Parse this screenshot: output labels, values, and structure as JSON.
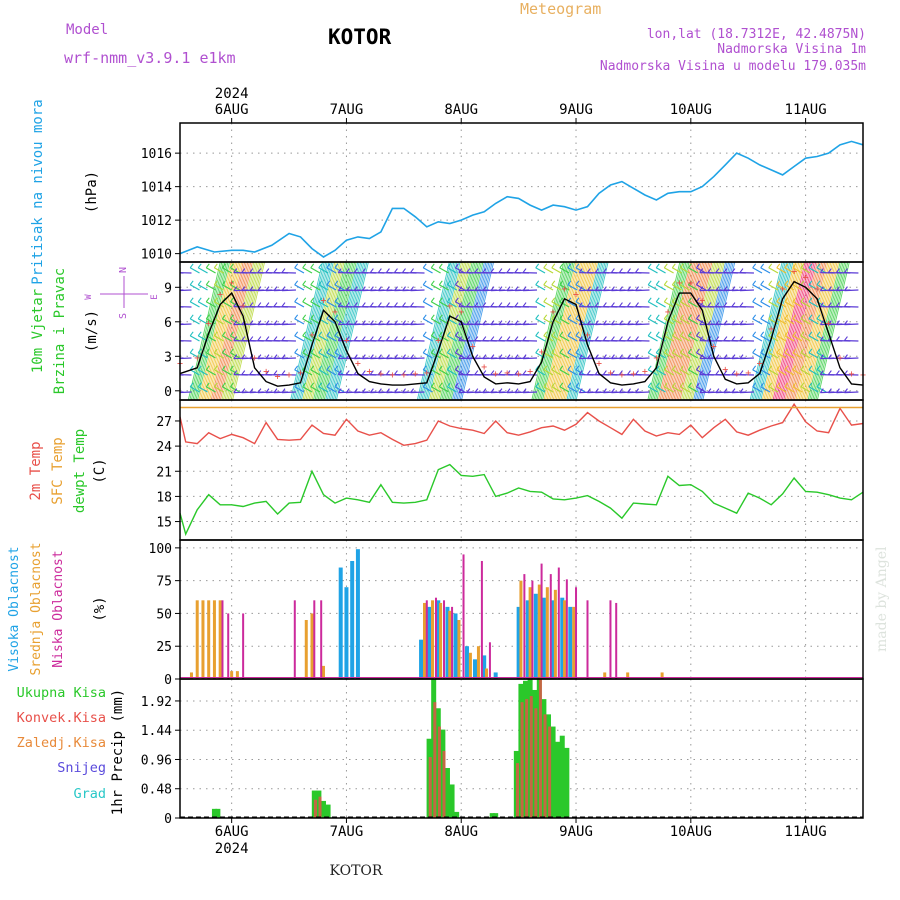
{
  "header": {
    "model_label": "Model",
    "model_name": "wrf-nmm_v3.9.1  e1km",
    "station": "KOTOR",
    "meteogram": "Meteogram",
    "lonlat": "lon,lat (18.7312E, 42.4875N)",
    "elevation": "Nadmorska Visina 1m",
    "model_elevation": "Nadmorska Visina u modelu 179.035m",
    "footer_station": "KOTOR",
    "watermark": "made by Angel"
  },
  "colors": {
    "pressure": "#1fa3e6",
    "temp2m": "#e8504a",
    "sfctemp": "#e8a030",
    "dewpt": "#2ac82a",
    "cloud_high": "#1fa3e6",
    "cloud_mid": "#e8a030",
    "cloud_low": "#cc2a9c",
    "precip_total": "#2ac82a",
    "precip_conv": "#e8504a",
    "precip_strat": "#e88a3a",
    "snow": "#5a4adc",
    "graupel": "#2ac8c8",
    "purple_text": "#b050d0",
    "title_orange": "#e8b060"
  },
  "chart_data": [
    {
      "type": "line",
      "panel": "pressure",
      "ylabel_main": "Pritisak na nivou mora",
      "ylabel_unit": "(hPa)",
      "yticks": [
        "1010",
        "1012",
        "1014",
        "1016"
      ],
      "ylim": [
        1009.5,
        1017.8
      ],
      "x_top_year": "2024",
      "x_top_dates": [
        "6AUG",
        "7AUG",
        "8AUG",
        "9AUG",
        "10AUG",
        "11AUG"
      ],
      "x_days_range": [
        5.55,
        11.5
      ],
      "x": [
        5.55,
        5.7,
        5.85,
        6.0,
        6.1,
        6.2,
        6.35,
        6.5,
        6.6,
        6.7,
        6.8,
        6.9,
        7.0,
        7.1,
        7.2,
        7.3,
        7.4,
        7.5,
        7.6,
        7.7,
        7.8,
        7.9,
        8.0,
        8.1,
        8.2,
        8.3,
        8.4,
        8.5,
        8.6,
        8.7,
        8.8,
        8.9,
        9.0,
        9.1,
        9.2,
        9.3,
        9.4,
        9.5,
        9.6,
        9.7,
        9.8,
        9.9,
        10.0,
        10.1,
        10.2,
        10.3,
        10.4,
        10.5,
        10.6,
        10.7,
        10.8,
        10.9,
        11.0,
        11.1,
        11.2,
        11.3,
        11.4,
        11.5
      ],
      "values": [
        1010.0,
        1010.4,
        1010.1,
        1010.2,
        1010.2,
        1010.1,
        1010.5,
        1011.2,
        1011.0,
        1010.3,
        1009.8,
        1010.2,
        1010.8,
        1011.0,
        1010.9,
        1011.3,
        1012.7,
        1012.7,
        1012.2,
        1011.6,
        1011.9,
        1011.8,
        1012.0,
        1012.3,
        1012.5,
        1013.0,
        1013.4,
        1013.3,
        1012.9,
        1012.6,
        1012.9,
        1012.8,
        1012.6,
        1012.8,
        1013.6,
        1014.1,
        1014.3,
        1013.9,
        1013.5,
        1013.2,
        1013.6,
        1013.7,
        1013.7,
        1014.0,
        1014.6,
        1015.3,
        1016.0,
        1015.7,
        1015.3,
        1015.0,
        1014.7,
        1015.2,
        1015.7,
        1015.8,
        1016.0,
        1016.5,
        1016.7,
        1016.5
      ]
    },
    {
      "type": "line",
      "panel": "wind",
      "ylabel_main": "10m Vjetar",
      "ylabel_sub": "Brzina i Pravac",
      "ylabel_unit": "(m/s)",
      "compass": [
        "N",
        "S",
        "W",
        "E"
      ],
      "yticks": [
        "0",
        "3",
        "6",
        "9"
      ],
      "ylim": [
        -0.8,
        11.2
      ],
      "x": [
        5.55,
        5.7,
        5.8,
        5.9,
        6.0,
        6.1,
        6.2,
        6.3,
        6.4,
        6.5,
        6.6,
        6.7,
        6.8,
        6.9,
        7.0,
        7.1,
        7.2,
        7.3,
        7.4,
        7.5,
        7.6,
        7.7,
        7.8,
        7.9,
        8.0,
        8.1,
        8.2,
        8.3,
        8.4,
        8.5,
        8.6,
        8.7,
        8.8,
        8.9,
        9.0,
        9.1,
        9.2,
        9.3,
        9.4,
        9.5,
        9.6,
        9.7,
        9.8,
        9.9,
        10.0,
        10.1,
        10.2,
        10.3,
        10.4,
        10.5,
        10.6,
        10.7,
        10.8,
        10.9,
        11.0,
        11.1,
        11.2,
        11.3,
        11.4,
        11.5
      ],
      "values": [
        1.5,
        2.0,
        5.0,
        7.5,
        8.5,
        6.5,
        2.0,
        0.8,
        0.4,
        0.5,
        0.7,
        4.0,
        7.0,
        6.0,
        3.5,
        1.5,
        0.8,
        0.6,
        0.5,
        0.5,
        0.6,
        0.7,
        3.5,
        6.5,
        6.0,
        3.0,
        1.2,
        0.6,
        0.7,
        0.6,
        0.8,
        2.5,
        6.0,
        8.0,
        7.5,
        4.0,
        1.5,
        0.7,
        0.5,
        0.6,
        0.8,
        2.0,
        6.0,
        8.5,
        8.5,
        7.0,
        3.0,
        1.0,
        0.6,
        0.7,
        1.5,
        4.5,
        8.0,
        9.5,
        9.0,
        8.0,
        5.0,
        2.0,
        0.6,
        0.5
      ]
    },
    {
      "type": "line",
      "panel": "temperature",
      "ylabel_lines": [
        "2m Temp",
        "SFC Temp",
        "dewpt Temp"
      ],
      "ylabel_unit": "(C)",
      "yticks": [
        "15",
        "18",
        "21",
        "24",
        "27"
      ],
      "ylim": [
        12.8,
        29.5
      ],
      "series": [
        {
          "name": "2m Temp",
          "x": [
            5.55,
            5.6,
            5.7,
            5.8,
            5.9,
            6.0,
            6.1,
            6.2,
            6.3,
            6.4,
            6.5,
            6.6,
            6.7,
            6.8,
            6.9,
            7.0,
            7.1,
            7.2,
            7.3,
            7.4,
            7.5,
            7.6,
            7.7,
            7.8,
            7.9,
            8.0,
            8.1,
            8.2,
            8.3,
            8.4,
            8.5,
            8.6,
            8.7,
            8.8,
            8.9,
            9.0,
            9.1,
            9.2,
            9.3,
            9.4,
            9.5,
            9.6,
            9.7,
            9.8,
            9.9,
            10.0,
            10.1,
            10.2,
            10.3,
            10.4,
            10.5,
            10.6,
            10.7,
            10.8,
            10.9,
            11.0,
            11.1,
            11.2,
            11.3,
            11.4,
            11.5
          ],
          "values": [
            27.5,
            24.5,
            24.3,
            25.6,
            24.9,
            25.4,
            25.0,
            24.3,
            26.8,
            24.8,
            24.7,
            24.8,
            26.5,
            25.5,
            25.3,
            27.2,
            25.8,
            25.3,
            25.6,
            24.8,
            24.1,
            24.3,
            24.7,
            27.0,
            26.4,
            26.1,
            25.9,
            25.5,
            27.0,
            25.6,
            25.3,
            25.7,
            26.2,
            26.4,
            25.9,
            26.6,
            28.0,
            27.0,
            26.2,
            25.4,
            27.2,
            25.8,
            25.2,
            25.6,
            25.4,
            26.5,
            25.0,
            26.2,
            27.2,
            25.7,
            25.3,
            25.9,
            26.4,
            26.8,
            29.0,
            26.9,
            25.8,
            25.6,
            28.5,
            26.5,
            26.7
          ]
        },
        {
          "name": "SFC Temp",
          "x": [
            5.55,
            11.5
          ],
          "values": [
            28.6,
            28.6
          ]
        },
        {
          "name": "dewpt Temp",
          "x": [
            5.55,
            5.6,
            5.7,
            5.8,
            5.9,
            6.0,
            6.1,
            6.2,
            6.3,
            6.4,
            6.5,
            6.6,
            6.7,
            6.8,
            6.9,
            7.0,
            7.1,
            7.2,
            7.3,
            7.4,
            7.5,
            7.6,
            7.7,
            7.8,
            7.9,
            8.0,
            8.1,
            8.2,
            8.3,
            8.4,
            8.5,
            8.6,
            8.7,
            8.8,
            8.9,
            9.0,
            9.1,
            9.2,
            9.3,
            9.4,
            9.5,
            9.6,
            9.7,
            9.8,
            9.9,
            10.0,
            10.1,
            10.2,
            10.3,
            10.4,
            10.5,
            10.6,
            10.7,
            10.8,
            10.9,
            11.0,
            11.1,
            11.2,
            11.3,
            11.4,
            11.5
          ],
          "values": [
            16.0,
            13.5,
            16.4,
            18.2,
            17.0,
            17.0,
            16.8,
            17.2,
            17.4,
            15.9,
            17.2,
            17.3,
            21.0,
            18.2,
            17.2,
            17.8,
            17.6,
            17.3,
            19.4,
            17.3,
            17.2,
            17.3,
            17.6,
            21.2,
            21.8,
            20.5,
            20.4,
            20.6,
            18.0,
            18.4,
            19.0,
            18.6,
            18.5,
            17.7,
            17.6,
            17.8,
            18.1,
            17.4,
            16.6,
            15.4,
            17.2,
            17.1,
            17.0,
            20.4,
            19.3,
            19.4,
            18.6,
            17.2,
            16.6,
            16.0,
            18.4,
            17.8,
            17.0,
            18.3,
            20.2,
            18.6,
            18.5,
            18.2,
            17.8,
            17.6,
            18.5
          ]
        }
      ]
    },
    {
      "type": "bar",
      "panel": "clouds",
      "ylabel_lines": [
        "Visoka Oblacnost",
        "Srednja Oblacnost",
        "Niska Oblacnost"
      ],
      "ylabel_unit": "(%)",
      "yticks": [
        "0",
        "25",
        "50",
        "75",
        "100"
      ],
      "ylim": [
        0,
        106
      ],
      "series": [
        {
          "name": "Visoka Oblacnost",
          "x": [
            6.95,
            7.0,
            7.05,
            7.1,
            7.65,
            7.72,
            7.8,
            7.88,
            7.95,
            8.05,
            8.12,
            8.2,
            8.3,
            8.5,
            8.58,
            8.65,
            8.72,
            8.8,
            8.88,
            8.95
          ],
          "values": [
            85,
            70,
            90,
            99,
            30,
            55,
            60,
            55,
            50,
            25,
            15,
            18,
            5,
            55,
            60,
            65,
            62,
            60,
            62,
            55
          ]
        },
        {
          "name": "Srednja Oblacnost",
          "x": [
            5.65,
            5.7,
            5.75,
            5.8,
            5.85,
            5.9,
            6.0,
            6.05,
            6.65,
            6.7,
            6.8,
            7.68,
            7.75,
            7.82,
            7.9,
            7.98,
            8.08,
            8.15,
            8.22,
            8.52,
            8.6,
            8.68,
            8.75,
            8.82,
            8.9,
            8.98,
            9.25,
            9.45,
            9.75
          ],
          "values": [
            5,
            60,
            60,
            60,
            60,
            60,
            6,
            6,
            45,
            50,
            10,
            58,
            60,
            58,
            52,
            45,
            20,
            25,
            8,
            75,
            70,
            72,
            70,
            68,
            60,
            55,
            5,
            5,
            5
          ]
        },
        {
          "name": "Niska Oblacnost",
          "x": [
            5.92,
            5.97,
            6.1,
            6.55,
            6.72,
            6.78,
            7.7,
            7.78,
            7.85,
            7.92,
            8.02,
            8.18,
            8.25,
            8.55,
            8.62,
            8.7,
            8.78,
            8.85,
            8.92,
            9.0,
            9.1,
            9.3,
            9.35
          ],
          "values": [
            60,
            50,
            50,
            60,
            60,
            60,
            60,
            62,
            60,
            55,
            95,
            90,
            28,
            80,
            75,
            88,
            80,
            85,
            76,
            70,
            60,
            60,
            58
          ]
        }
      ]
    },
    {
      "type": "bar",
      "panel": "precip",
      "ylabel_lines": [
        "Ukupna Kisa",
        "Konvek.Kisa",
        "Zaledj.Kisa",
        "Snijeg",
        "Grad"
      ],
      "ylabel_unit": "1hr Precip (mm)",
      "yticks": [
        "0",
        "0.48",
        "0.96",
        "1.44",
        "1.92"
      ],
      "ylim": [
        0,
        2.28
      ],
      "x_bottom_dates": [
        "6AUG",
        "7AUG",
        "8AUG",
        "9AUG",
        "10AUG",
        "11AUG"
      ],
      "x_bottom_year": "2024",
      "series": [
        {
          "name": "Ukupna Kisa",
          "x": [
            5.85,
            5.88,
            6.72,
            6.76,
            6.8,
            6.84,
            7.72,
            7.76,
            7.8,
            7.84,
            7.88,
            7.92,
            7.96,
            8.27,
            8.3,
            8.48,
            8.52,
            8.56,
            8.6,
            8.64,
            8.68,
            8.72,
            8.76,
            8.8,
            8.84,
            8.88,
            8.92
          ],
          "values": [
            0.15,
            0.15,
            0.45,
            0.45,
            0.28,
            0.22,
            1.3,
            2.28,
            1.8,
            1.45,
            0.82,
            0.55,
            0.1,
            0.08,
            0.08,
            1.1,
            2.2,
            2.25,
            2.28,
            2.1,
            2.3,
            1.95,
            1.7,
            1.5,
            1.25,
            1.35,
            1.15
          ]
        },
        {
          "name": "Konvek.Kisa",
          "x": [
            6.73,
            6.77,
            7.73,
            7.77,
            7.81,
            7.85,
            8.49,
            8.53,
            8.57,
            8.61,
            8.65,
            8.69,
            8.73,
            8.77
          ],
          "values": [
            0.3,
            0.35,
            1.0,
            1.9,
            1.5,
            1.1,
            0.9,
            1.9,
            1.95,
            2.0,
            1.8,
            2.3,
            1.7,
            1.5
          ]
        }
      ]
    }
  ]
}
